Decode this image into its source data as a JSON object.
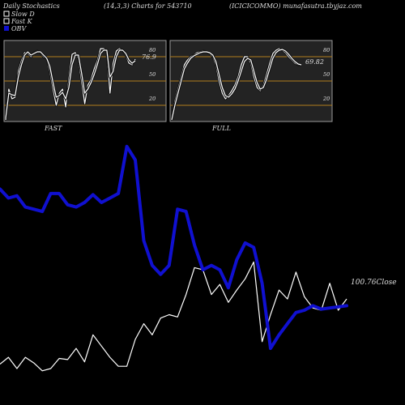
{
  "header": {
    "left": "Daily Stochastics",
    "center": "(14,3,3) Charts for 543710",
    "right": "(ICICICOMMO) munafasutra.tbyjaz.com"
  },
  "legend": {
    "slow_d": "Slow  D",
    "fast_k": "Fast K",
    "obv": "OBV"
  },
  "colors": {
    "background": "#000000",
    "price_line": "#ffffff",
    "obv_line": "#1010d0",
    "panel_bg": "#232323",
    "level_line": "#b07d1c",
    "panel_border": "#9a9a9a",
    "label_text": "#dddddd"
  },
  "chart_data": [
    {
      "type": "line",
      "title": "FAST",
      "ylim": [
        0,
        100
      ],
      "levels": [
        20,
        50,
        80
      ],
      "tick_labels": [
        "80",
        "50",
        "20"
      ],
      "last_value_label": "76.9",
      "x": [
        1,
        2,
        3,
        4,
        5,
        6,
        7,
        8,
        9,
        10,
        11,
        12,
        13,
        14,
        15,
        16,
        17,
        18,
        19,
        20,
        21,
        22,
        23,
        24,
        25,
        26,
        27,
        28,
        29,
        30,
        31,
        32,
        33,
        34,
        35,
        36,
        37,
        38,
        39,
        40,
        41,
        42
      ],
      "series": [
        {
          "values": [
            2,
            40,
            28,
            30,
            62,
            75,
            85,
            84,
            80,
            85,
            87,
            85,
            80,
            78,
            62,
            40,
            20,
            35,
            40,
            18,
            52,
            83,
            85,
            78,
            50,
            22,
            45,
            52,
            65,
            75,
            90,
            90,
            87,
            35,
            72,
            87,
            90,
            88,
            82,
            72,
            70,
            77
          ]
        },
        {
          "values": [
            4,
            35,
            33,
            32,
            55,
            70,
            82,
            86,
            82,
            84,
            86,
            86,
            82,
            78,
            68,
            48,
            30,
            32,
            36,
            28,
            42,
            70,
            82,
            82,
            60,
            35,
            40,
            48,
            58,
            70,
            84,
            88,
            88,
            55,
            62,
            80,
            88,
            88,
            84,
            76,
            72,
            75
          ]
        }
      ]
    },
    {
      "type": "line",
      "title": "FULL",
      "ylim": [
        0,
        100
      ],
      "levels": [
        20,
        50,
        80
      ],
      "tick_labels": [
        "80",
        "50",
        "20"
      ],
      "last_value_label": "69.82",
      "x": [
        1,
        2,
        3,
        4,
        5,
        6,
        7,
        8,
        9,
        10,
        11,
        12,
        13,
        14,
        15,
        16,
        17,
        18,
        19,
        20,
        21,
        22,
        23,
        24,
        25,
        26,
        27,
        28,
        29,
        30,
        31,
        32,
        33,
        34,
        35,
        36,
        37,
        38,
        39,
        40,
        41,
        42
      ],
      "series": [
        {
          "values": [
            2,
            25,
            40,
            55,
            70,
            76,
            80,
            82,
            85,
            86,
            87,
            86,
            84,
            80,
            70,
            50,
            35,
            28,
            32,
            38,
            45,
            55,
            70,
            80,
            80,
            72,
            55,
            42,
            38,
            45,
            58,
            72,
            84,
            88,
            90,
            88,
            85,
            80,
            76,
            72,
            70,
            70
          ]
        },
        {
          "values": [
            2,
            20,
            35,
            50,
            65,
            72,
            78,
            81,
            83,
            85,
            86,
            86,
            85,
            82,
            74,
            58,
            42,
            32,
            30,
            34,
            40,
            50,
            62,
            74,
            78,
            76,
            62,
            48,
            40,
            42,
            52,
            65,
            78,
            85,
            88,
            89,
            87,
            83,
            78,
            74,
            71,
            70
          ]
        }
      ]
    },
    {
      "type": "line",
      "title": "",
      "last_value_label": "100.76Close",
      "x": [
        1,
        2,
        3,
        4,
        5,
        6,
        7,
        8,
        9,
        10,
        11,
        12,
        13,
        14,
        15,
        16,
        17,
        18,
        19,
        20,
        21,
        22,
        23,
        24,
        25,
        26,
        27,
        28,
        29,
        30,
        31,
        32,
        33,
        34,
        35,
        36,
        37,
        38,
        39,
        40,
        41,
        42
      ],
      "series": [
        {
          "name": "OBV",
          "values": [
            280,
            272,
            274,
            264,
            262,
            260,
            276,
            276,
            266,
            264,
            268,
            275,
            268,
            272,
            276,
            318,
            306,
            234,
            212,
            204,
            212,
            262,
            260,
            230,
            208,
            212,
            208,
            192,
            217,
            232,
            228,
            196,
            138,
            150,
            160,
            170,
            172,
            176,
            173,
            174,
            175,
            176
          ]
        },
        {
          "name": "Close",
          "values": [
            124,
            130,
            120,
            130,
            125,
            118,
            120,
            129,
            128,
            138,
            126,
            150,
            140,
            130,
            122,
            122,
            146,
            160,
            150,
            165,
            168,
            166,
            186,
            210,
            208,
            186,
            195,
            179,
            190,
            200,
            215,
            144,
            168,
            190,
            182,
            206,
            184,
            174,
            172,
            196,
            172,
            182
          ]
        }
      ]
    }
  ]
}
